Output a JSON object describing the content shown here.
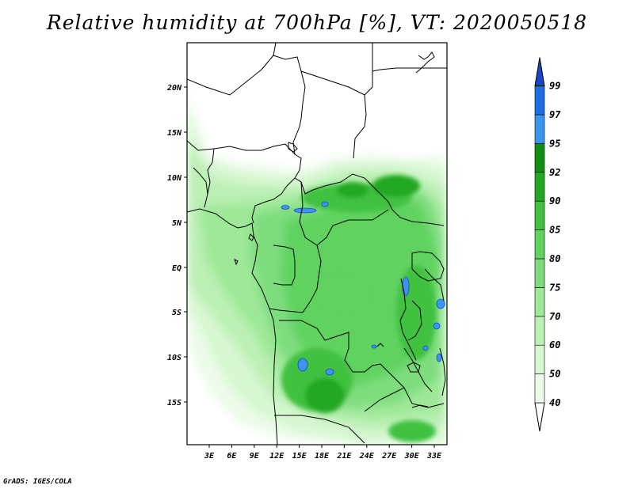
{
  "title": "Relative humidity at 700hPa [%], VT: 2020050518",
  "credit": "GrADS: IGES/COLA",
  "colors": {
    "c40": "#ecfce9",
    "c50": "#d7f7d1",
    "c60": "#bcf0b5",
    "c70": "#9ee898",
    "c75": "#7ddd7d",
    "c80": "#5fd25f",
    "c85": "#40c140",
    "c90": "#22a822",
    "c92": "#128f12",
    "c95": "#3c96f0",
    "c97": "#1e6ee6",
    "c99": "#1448c8",
    "border": "#000000"
  },
  "map": {
    "lat_labels": [
      "20N",
      "15N",
      "10N",
      "5N",
      "EQ",
      "5S",
      "10S",
      "15S"
    ],
    "lon_labels": [
      "3E",
      "6E",
      "9E",
      "12E",
      "15E",
      "18E",
      "21E",
      "24E",
      "27E",
      "30E",
      "33E"
    ]
  },
  "colorbar": {
    "labels": [
      "40",
      "50",
      "60",
      "70",
      "75",
      "80",
      "85",
      "90",
      "92",
      "95",
      "97",
      "99"
    ]
  }
}
